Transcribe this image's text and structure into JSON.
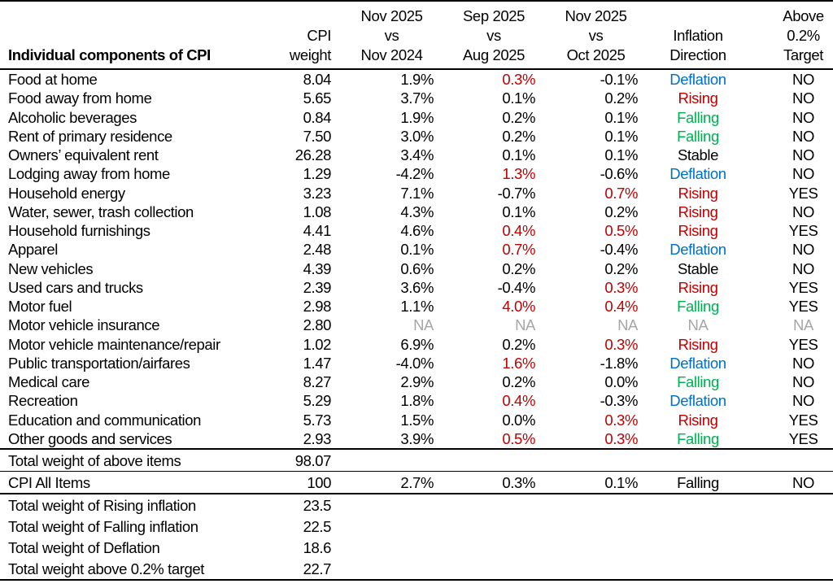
{
  "header": {
    "title": "Individual components of CPI",
    "weight": [
      "CPI",
      "weight"
    ],
    "yoy": [
      "Nov 2025",
      "vs",
      "Nov 2024"
    ],
    "sep_aug": [
      "Sep 2025",
      "vs",
      "Aug 2025"
    ],
    "nov_oct": [
      "Nov 2025",
      "vs",
      "Oct 2025"
    ],
    "direction": [
      "Inflation",
      "Direction"
    ],
    "above": [
      "Above",
      "0.2%",
      "Target"
    ]
  },
  "colors": {
    "red": "#C00000",
    "blue": "#0070C0",
    "green": "#00B050",
    "na": "#A6A6A6"
  },
  "direction_colors": {
    "Deflation": "blue",
    "Rising": "red",
    "Falling": "green",
    "Stable": "",
    "NA": "na"
  },
  "rows": [
    {
      "name": "Food at home",
      "weight": "8.04",
      "yoy": "1.9%",
      "sep_aug": "0.3%",
      "nov_oct": "-0.1%",
      "direction": "Deflation",
      "above": "NO",
      "red": [
        "sep_aug"
      ]
    },
    {
      "name": "Food away from home",
      "weight": "5.65",
      "yoy": "3.7%",
      "sep_aug": "0.1%",
      "nov_oct": "0.2%",
      "direction": "Rising",
      "above": "NO",
      "red": []
    },
    {
      "name": "Alcoholic beverages",
      "weight": "0.84",
      "yoy": "1.9%",
      "sep_aug": "0.2%",
      "nov_oct": "0.1%",
      "direction": "Falling",
      "above": "NO",
      "red": []
    },
    {
      "name": "Rent of primary residence",
      "weight": "7.50",
      "yoy": "3.0%",
      "sep_aug": "0.2%",
      "nov_oct": "0.1%",
      "direction": "Falling",
      "above": "NO",
      "red": []
    },
    {
      "name": "Owners’ equivalent rent",
      "weight": "26.28",
      "yoy": "3.4%",
      "sep_aug": "0.1%",
      "nov_oct": "0.1%",
      "direction": "Stable",
      "above": "NO",
      "red": []
    },
    {
      "name": "Lodging away from home",
      "weight": "1.29",
      "yoy": "-4.2%",
      "sep_aug": "1.3%",
      "nov_oct": "-0.6%",
      "direction": "Deflation",
      "above": "NO",
      "red": [
        "sep_aug"
      ]
    },
    {
      "name": "Household energy",
      "weight": "3.23",
      "yoy": "7.1%",
      "sep_aug": "-0.7%",
      "nov_oct": "0.7%",
      "direction": "Rising",
      "above": "YES",
      "red": [
        "nov_oct"
      ]
    },
    {
      "name": "Water, sewer, trash collection",
      "weight": "1.08",
      "yoy": "4.3%",
      "sep_aug": "0.1%",
      "nov_oct": "0.2%",
      "direction": "Rising",
      "above": "NO",
      "red": []
    },
    {
      "name": "Household furnishings",
      "weight": "4.41",
      "yoy": "4.6%",
      "sep_aug": "0.4%",
      "nov_oct": "0.5%",
      "direction": "Rising",
      "above": "YES",
      "red": [
        "sep_aug",
        "nov_oct"
      ]
    },
    {
      "name": "Apparel",
      "weight": "2.48",
      "yoy": "0.1%",
      "sep_aug": "0.7%",
      "nov_oct": "-0.4%",
      "direction": "Deflation",
      "above": "NO",
      "red": [
        "sep_aug"
      ]
    },
    {
      "name": "New vehicles",
      "weight": "4.39",
      "yoy": "0.6%",
      "sep_aug": "0.2%",
      "nov_oct": "0.2%",
      "direction": "Stable",
      "above": "NO",
      "red": []
    },
    {
      "name": "Used cars and trucks",
      "weight": "2.39",
      "yoy": "3.6%",
      "sep_aug": "-0.4%",
      "nov_oct": "0.3%",
      "direction": "Rising",
      "above": "YES",
      "red": [
        "nov_oct"
      ]
    },
    {
      "name": "Motor fuel",
      "weight": "2.98",
      "yoy": "1.1%",
      "sep_aug": "4.0%",
      "nov_oct": "0.4%",
      "direction": "Falling",
      "above": "YES",
      "red": [
        "sep_aug",
        "nov_oct"
      ]
    },
    {
      "name": "Motor vehicle insurance",
      "weight": "2.80",
      "yoy": "NA",
      "sep_aug": "NA",
      "nov_oct": "NA",
      "direction": "NA",
      "above": "NA",
      "red": []
    },
    {
      "name": "Motor vehicle maintenance/repair",
      "weight": "1.02",
      "yoy": "6.9%",
      "sep_aug": "0.2%",
      "nov_oct": "0.3%",
      "direction": "Rising",
      "above": "YES",
      "red": [
        "nov_oct"
      ]
    },
    {
      "name": "Public transportation/airfares",
      "weight": "1.47",
      "yoy": "-4.0%",
      "sep_aug": "1.6%",
      "nov_oct": "-1.8%",
      "direction": "Deflation",
      "above": "NO",
      "red": [
        "sep_aug"
      ]
    },
    {
      "name": "Medical care",
      "weight": "8.27",
      "yoy": "2.9%",
      "sep_aug": "0.2%",
      "nov_oct": "0.0%",
      "direction": "Falling",
      "above": "NO",
      "red": []
    },
    {
      "name": "Recreation",
      "weight": "5.29",
      "yoy": "1.8%",
      "sep_aug": "0.4%",
      "nov_oct": "-0.3%",
      "direction": "Deflation",
      "above": "NO",
      "red": [
        "sep_aug"
      ]
    },
    {
      "name": "Education and communication",
      "weight": "5.73",
      "yoy": "1.5%",
      "sep_aug": "0.0%",
      "nov_oct": "0.3%",
      "direction": "Rising",
      "above": "YES",
      "red": [
        "nov_oct"
      ]
    },
    {
      "name": "Other goods and services",
      "weight": "2.93",
      "yoy": "3.9%",
      "sep_aug": "0.5%",
      "nov_oct": "0.3%",
      "direction": "Falling",
      "above": "YES",
      "red": [
        "sep_aug",
        "nov_oct"
      ]
    }
  ],
  "total_above": {
    "name": "Total weight of above items",
    "weight": "98.07"
  },
  "all_items": {
    "name": "CPI All Items",
    "weight": "100",
    "yoy": "2.7%",
    "sep_aug": "0.3%",
    "nov_oct": "0.1%",
    "direction": "Falling",
    "above": "NO"
  },
  "summary": [
    {
      "name": "Total weight of Rising inflation",
      "weight": "23.5"
    },
    {
      "name": "Total weight of Falling inflation",
      "weight": "22.5"
    },
    {
      "name": "Total weight of Deflation",
      "weight": "18.6"
    },
    {
      "name": "Total weight above 0.2% target",
      "weight": "22.7"
    }
  ]
}
